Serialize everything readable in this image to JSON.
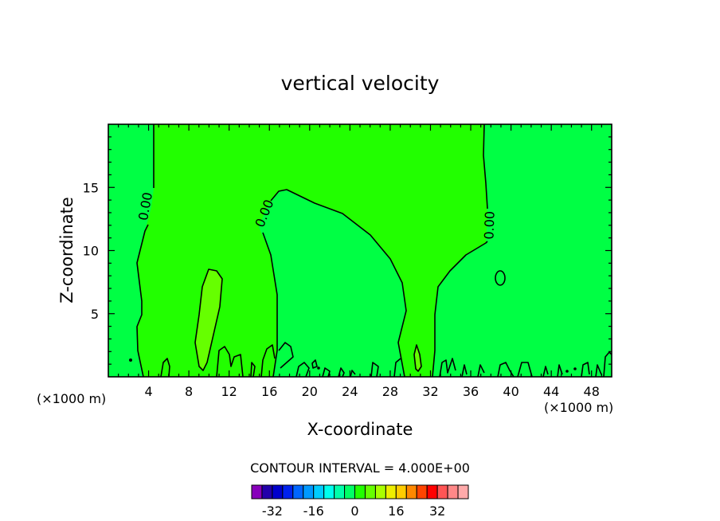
{
  "chart_data": {
    "type": "contour",
    "title": "vertical velocity",
    "xlabel": "X-coordinate",
    "ylabel": "Z-coordinate",
    "x_unit_left": "(×1000 m)",
    "x_unit_right": "(×1000 m)",
    "xlim": [
      0,
      50
    ],
    "ylim": [
      0,
      20
    ],
    "x_ticks": [
      4,
      8,
      12,
      16,
      20,
      24,
      28,
      32,
      36,
      40,
      44,
      48
    ],
    "x_tick_labels": [
      "4",
      "8",
      "12",
      "16",
      "20",
      "24",
      "28",
      "32",
      "36",
      "40",
      "44",
      "48"
    ],
    "y_ticks": [
      5,
      10,
      15
    ],
    "y_tick_labels": [
      "5",
      "10",
      "15"
    ],
    "contour_labels": [
      "0.00",
      "0.00",
      "0.00"
    ],
    "contour_interval_text": "CONTOUR INTERVAL = 4.000E+00",
    "contour_interval": 4.0,
    "colorbar": {
      "colors": [
        "#8800bb",
        "#2200aa",
        "#0000cc",
        "#0022ee",
        "#0066ff",
        "#0099ff",
        "#00ccff",
        "#00ffee",
        "#00ffaa",
        "#00ff66",
        "#22ff00",
        "#66ff00",
        "#aaff00",
        "#eeee00",
        "#ffcc00",
        "#ff8800",
        "#ff4400",
        "#ff0000",
        "#ff5555",
        "#ff8888",
        "#ffaaaa"
      ],
      "tick_labels": [
        "-32",
        "-16",
        "0",
        "16",
        "32"
      ],
      "tick_values": [
        -32,
        -16,
        0,
        16,
        32
      ]
    },
    "background_color": "#00ff44",
    "positive_region_color": "#22ff00",
    "strong_positive_color": "#66ff00"
  }
}
